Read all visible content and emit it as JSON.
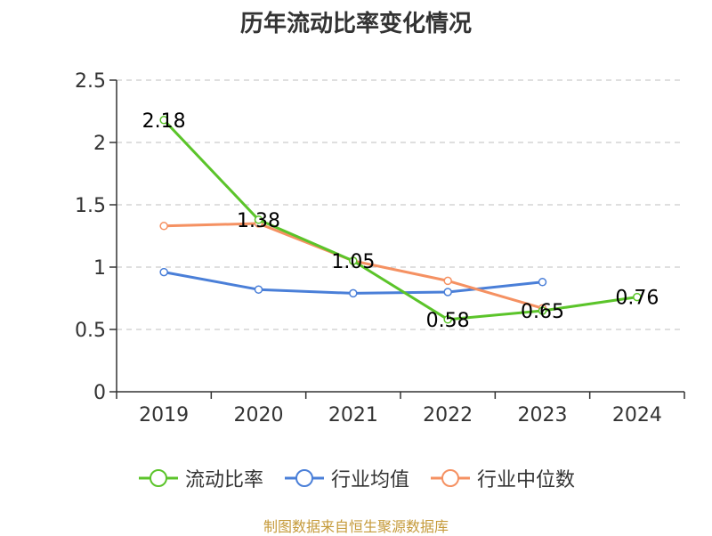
{
  "title": "历年流动比率变化情况",
  "source": "制图数据来自恒生聚源数据库",
  "colors": {
    "axis": "#333333",
    "grid": "#cccccc",
    "text": "#333333",
    "source": "#c59a3a"
  },
  "chart_data": {
    "type": "line",
    "title": "历年流动比率变化情况",
    "categories": [
      "2019",
      "2020",
      "2021",
      "2022",
      "2023",
      "2024"
    ],
    "ylim": [
      0,
      2.5
    ],
    "yticks": [
      0,
      0.5,
      1,
      1.5,
      2,
      2.5
    ],
    "ytick_labels": [
      "0",
      "0.5",
      "1",
      "1.5",
      "2",
      "2.5"
    ],
    "grid": true,
    "legend_position": "bottom",
    "series": [
      {
        "name": "流动比率",
        "color": "#5bc42a",
        "values": [
          2.18,
          1.38,
          1.05,
          0.58,
          0.65,
          0.76
        ],
        "data_labels": [
          "2.18",
          "1.38",
          "1.05",
          "0.58",
          "0.65",
          "0.76"
        ]
      },
      {
        "name": "行业均值",
        "color": "#4a7fd8",
        "values": [
          0.96,
          0.82,
          0.79,
          0.8,
          0.88,
          null
        ]
      },
      {
        "name": "行业中位数",
        "color": "#f59162",
        "values": [
          1.33,
          1.35,
          1.05,
          0.89,
          0.67,
          null
        ]
      }
    ]
  }
}
